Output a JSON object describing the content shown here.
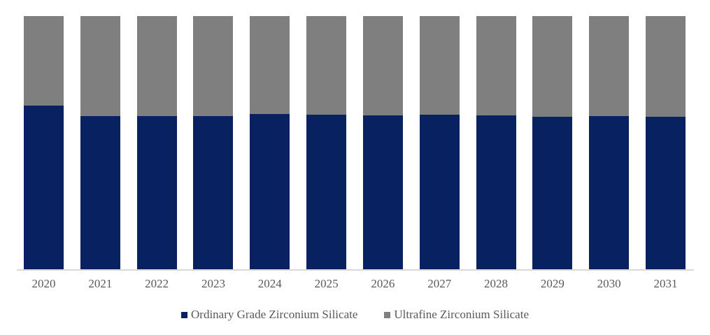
{
  "chart_data": {
    "type": "bar",
    "subtype": "stacked-100-percent",
    "title": "",
    "xlabel": "",
    "ylabel": "",
    "unit": "percent share",
    "ylim": [
      0,
      100
    ],
    "grid": false,
    "legend_position": "bottom",
    "axis_line_color": "#d9d9d9",
    "tick_label_color": "#595959",
    "categories": [
      "2020",
      "2021",
      "2022",
      "2023",
      "2024",
      "2025",
      "2026",
      "2027",
      "2028",
      "2029",
      "2030",
      "2031"
    ],
    "series": [
      {
        "name": "Ordinary Grade Zirconium Silicate",
        "color": "#082161",
        "values": [
          64.6,
          60.5,
          60.5,
          60.5,
          61.3,
          61.0,
          60.8,
          61.0,
          60.8,
          60.2,
          60.5,
          60.2
        ]
      },
      {
        "name": "Ultrafine Zirconium Silicate",
        "color": "#7f7f7f",
        "values": [
          35.4,
          39.5,
          39.5,
          39.5,
          38.7,
          39.0,
          39.2,
          39.0,
          39.2,
          39.8,
          39.5,
          39.8
        ]
      }
    ]
  }
}
